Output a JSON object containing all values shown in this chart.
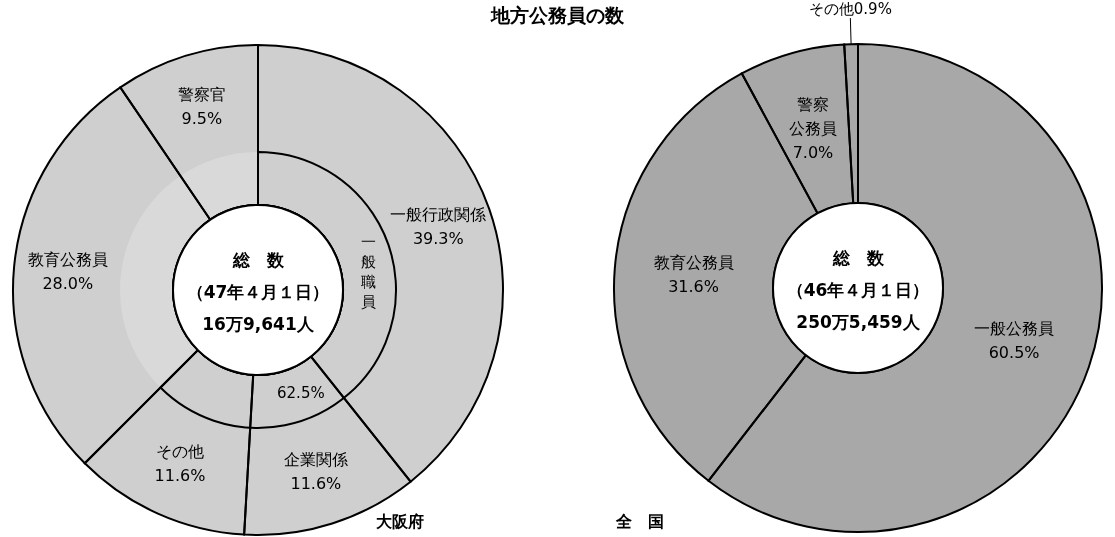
{
  "chart_data": [
    {
      "type": "donut",
      "title": "地方公務員の数",
      "subtitle": "大阪府",
      "annotations": [
        "総　数",
        "（47年４月１日）",
        "16万9,641人"
      ],
      "categories": [
        "一般行政関係",
        "企業関係",
        "その他",
        "教育公務員",
        "警察官"
      ],
      "values": [
        39.3,
        11.6,
        11.6,
        28.0,
        9.5
      ],
      "value_labels": [
        "39.3%",
        "11.6%",
        "11.6%",
        "28.0%",
        "9.5%"
      ],
      "colors": [
        "#cfcfcf",
        "#cfcfcf",
        "#cfcfcf",
        "#cfcfcf",
        "#cfcfcf"
      ]
    },
    {
      "type": "donut",
      "categories": [
        "一般職員",
        null
      ],
      "values": [
        62.5,
        37.5
      ],
      "value_labels": [
        "62.5%",
        null
      ],
      "colors": [
        "#cfcfcf",
        "#d9d9d9"
      ]
    },
    {
      "type": "donut",
      "subtitle": "全　国",
      "annotations": [
        "総　数",
        "（46年４月１日）",
        "250万5,459人"
      ],
      "categories": [
        "一般公務員",
        "教育公務員",
        "警察公務員",
        "その他"
      ],
      "values": [
        60.5,
        31.6,
        7.0,
        0.9
      ],
      "value_labels": [
        "60.5%",
        "31.6%",
        "7.0%",
        "0.9%"
      ],
      "colors": [
        "#a8a8a8",
        "#a8a8a8",
        "#a8a8a8",
        "#a8a8a8"
      ]
    }
  ]
}
